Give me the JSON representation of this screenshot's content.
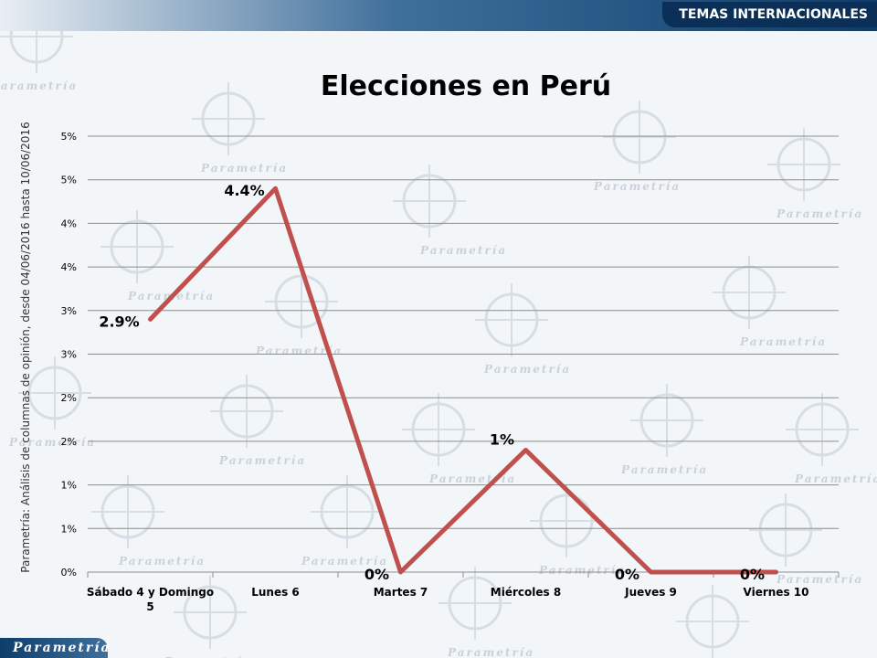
{
  "header": {
    "section": "TEMAS INTERNACIONALES"
  },
  "footer": {
    "logo": "Parametría"
  },
  "watermark": {
    "text": "Parametría"
  },
  "side_note": "Parametría: Análisis de columnas de opinión, desde 04/06/2016 hasta  10/06/2016",
  "colors": {
    "line": "#c0504d",
    "grid": "#8c8c8c",
    "header_dark": "#0b2f57"
  },
  "chart_data": {
    "type": "line",
    "title": "Elecciones en Perú",
    "categories": [
      "Sábado 4 y Domingo 5",
      "Lunes 6",
      "Martes 7",
      "Miércoles 8",
      "Jueves 9",
      "Viernes 10"
    ],
    "category_lines": [
      [
        "Sábado 4 y Domingo",
        "5"
      ],
      [
        "Lunes 6"
      ],
      [
        "Martes 7"
      ],
      [
        "Miércoles 8"
      ],
      [
        "Jueves 9"
      ],
      [
        "Viernes 10"
      ]
    ],
    "series": [
      {
        "values": [
          2.9,
          4.4,
          0,
          1.4,
          0,
          0
        ]
      }
    ],
    "data_labels": [
      "2.9%",
      "4.4%",
      "0%",
      "1%",
      "0%",
      "0%"
    ],
    "y_ticks": [
      "0%",
      "1%",
      "1%",
      "2%",
      "2%",
      "3%",
      "3%",
      "4%",
      "4%",
      "5%",
      "5%"
    ],
    "ylim": [
      0,
      5
    ],
    "grid": true,
    "legend": "none"
  }
}
